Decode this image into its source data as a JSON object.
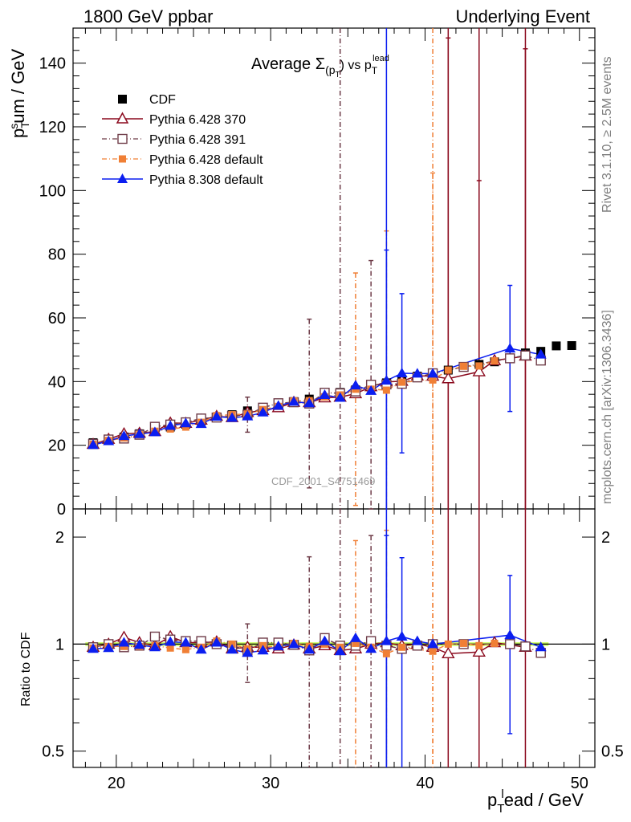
{
  "header": {
    "left": "1800 GeV ppbar",
    "right": "Underlying Event"
  },
  "side_texts": {
    "rivet": "Rivet 3.1.10, ≥ 2.5M events",
    "mcplots": "mcplots.cern.ch [arXiv:1306.3436]"
  },
  "watermark": "CDF_2001_S4751469",
  "colors": {
    "cdf": "#000000",
    "p370": "#8b0a1e",
    "p391": "#6e3c48",
    "p6def": "#f07f35",
    "p8def": "#0b1ef0",
    "band": "#ccff66"
  },
  "chart_data": [
    {
      "type": "scatter",
      "title": "Average Σ(p_T) vs p_T^lead",
      "title_main": "Average Σ",
      "title_sub": "(p",
      "title_subsub": "T",
      "title_mid": ") vs p",
      "title_sub2": "T",
      "title_sup": "lead",
      "ylabel": "p_T^sum / GeV",
      "ylabel_main": "p",
      "ylabel_sub": "T",
      "ylabel_sup": "s",
      "ylabel_rest": "um / GeV",
      "xlim": [
        17.2,
        51
      ],
      "ylim": [
        0,
        151
      ],
      "yticks": [
        "0",
        "20",
        "40",
        "60",
        "80",
        "100",
        "120",
        "140"
      ],
      "legend_position": "top-left",
      "series": [
        {
          "name": "CDF",
          "marker": "square",
          "x": [
            18.5,
            19.5,
            20.5,
            21.5,
            22.5,
            23.5,
            24.5,
            25.5,
            26.5,
            27.5,
            28.5,
            29.5,
            30.5,
            31.5,
            32.5,
            33.5,
            34.5,
            35.5,
            36.5,
            37.5,
            38.5,
            39.5,
            40.5,
            41.5,
            42.5,
            43.5,
            44.5,
            45.5,
            46.5,
            47.5,
            48.5,
            49.5
          ],
          "y": [
            20.8,
            21.9,
            22.6,
            23.6,
            24.6,
            25.7,
            26.6,
            27.7,
            28.7,
            29.6,
            30.8,
            31.5,
            32.9,
            33.7,
            34.5,
            35.2,
            36.6,
            37.4,
            38.3,
            39.6,
            40.6,
            41.7,
            42.4,
            43.6,
            44.6,
            45.4,
            46.2,
            47.4,
            49.0,
            49.5,
            51.2,
            51.3
          ]
        },
        {
          "name": "Pythia 6.428 370",
          "marker": "open-triangle",
          "x": [
            18.5,
            19.5,
            20.5,
            21.5,
            22.5,
            23.5,
            24.5,
            25.5,
            26.5,
            27.5,
            28.5,
            29.5,
            30.5,
            31.5,
            32.5,
            33.5,
            34.5,
            35.5,
            36.5,
            37.5,
            38.5,
            39.5,
            40.5,
            41.5,
            43.5,
            44.5,
            46.5
          ],
          "y": [
            20.3,
            21.9,
            23.6,
            23.8,
            24.3,
            27.0,
            26.9,
            27.9,
            29.1,
            28.7,
            30.3,
            30.9,
            31.8,
            33.5,
            33.4,
            34.9,
            35.1,
            36.2,
            38.4,
            39.9,
            40.1,
            41.8,
            41.7,
            40.9,
            43.1,
            46.6,
            48.0
          ],
          "err": [
            0,
            0,
            0,
            0,
            0,
            0,
            0,
            0,
            0,
            0,
            0,
            0,
            0,
            0,
            0,
            0,
            0,
            0,
            0,
            0,
            0,
            0,
            0,
            107.0,
            60.0,
            0,
            96.5
          ]
        },
        {
          "name": "Pythia 6.428 391",
          "marker": "open-square",
          "x": [
            18.5,
            19.5,
            20.5,
            21.5,
            22.5,
            23.5,
            24.5,
            25.5,
            26.5,
            27.5,
            28.5,
            29.5,
            30.5,
            31.5,
            32.5,
            33.5,
            34.5,
            35.5,
            36.5,
            37.5,
            38.5,
            39.5,
            40.5,
            42.5,
            45.5,
            46.5,
            47.5
          ],
          "y": [
            20.4,
            21.8,
            22.1,
            23.3,
            25.8,
            26.5,
            27.2,
            28.4,
            28.7,
            29.2,
            29.6,
            31.8,
            33.2,
            33.5,
            33.1,
            36.5,
            36.3,
            36.9,
            39.0,
            39.1,
            39.3,
            41.3,
            42.6,
            44.6,
            47.3,
            48.2,
            46.6
          ],
          "err": [
            0,
            0,
            0,
            0,
            0,
            0,
            0,
            0,
            0,
            0,
            5.5,
            0,
            0,
            0,
            26.5,
            0,
            0,
            0,
            39.0,
            0,
            0,
            0,
            0,
            0,
            0,
            0,
            0
          ]
        },
        {
          "name": "Pythia 6.428 default",
          "marker": "filled-square",
          "x": [
            18.5,
            19.5,
            20.5,
            21.5,
            22.5,
            23.5,
            24.5,
            25.5,
            26.5,
            27.5,
            28.5,
            29.5,
            30.5,
            31.5,
            32.5,
            33.5,
            34.5,
            35.5,
            36.5,
            37.5,
            38.5,
            40.5,
            41.5,
            42.5,
            43.5,
            44.5
          ],
          "y": [
            20.3,
            21.5,
            22.3,
            23.3,
            24.4,
            25.1,
            25.7,
            27.2,
            29.3,
            29.6,
            29.8,
            31.2,
            32.2,
            33.9,
            34.0,
            35.2,
            35.8,
            37.6,
            37.6,
            37.3,
            39.8,
            40.5,
            43.6,
            44.8,
            44.9,
            46.5
          ],
          "err": [
            0,
            0,
            0,
            0,
            0,
            0,
            0,
            0,
            0,
            0,
            0,
            0,
            0,
            0,
            0,
            0,
            0,
            36.5,
            0,
            50.0,
            0,
            65.0,
            0,
            0,
            0,
            0
          ]
        },
        {
          "name": "Pythia 8.308 default",
          "marker": "filled-triangle",
          "x": [
            18.5,
            19.5,
            20.5,
            21.5,
            22.5,
            23.5,
            24.5,
            25.5,
            26.5,
            27.5,
            28.5,
            29.5,
            30.5,
            31.5,
            32.5,
            33.5,
            34.5,
            35.5,
            36.5,
            37.5,
            38.5,
            39.5,
            40.5,
            45.5,
            47.5
          ],
          "y": [
            20.1,
            21.3,
            22.9,
            23.5,
            24.1,
            26.1,
            26.9,
            26.7,
            29.0,
            28.6,
            29.1,
            30.3,
            32.4,
            33.7,
            33.2,
            35.8,
            34.9,
            38.8,
            37.1,
            40.3,
            42.6,
            42.5,
            42.5,
            50.4,
            48.5
          ],
          "err": [
            0,
            0,
            0,
            0,
            0,
            0,
            0,
            0,
            0,
            0,
            0,
            0,
            0,
            0,
            0,
            0,
            0,
            0,
            0,
            41.0,
            25.0,
            0,
            0,
            19.8,
            0
          ]
        }
      ]
    },
    {
      "type": "scatter",
      "ylabel": "Ratio to CDF",
      "xlabel": "p_T^lead / GeV",
      "xlabel_main": "p",
      "xlabel_sub": "T",
      "xlabel_sup": "l",
      "xlabel_rest": "ead / GeV",
      "xlim": [
        17.2,
        51
      ],
      "ylim": [
        0.45,
        2.4
      ],
      "log_y": true,
      "xticks": [
        "20",
        "30",
        "40",
        "50"
      ],
      "yticks": [
        "0.5",
        "1",
        "2"
      ],
      "series": [
        {
          "name": "Pythia 6.428 370",
          "x": [
            18.5,
            19.5,
            20.5,
            21.5,
            22.5,
            23.5,
            24.5,
            25.5,
            26.5,
            27.5,
            28.5,
            29.5,
            30.5,
            31.5,
            32.5,
            33.5,
            34.5,
            35.5,
            36.5,
            37.5,
            38.5,
            39.5,
            40.5,
            41.5,
            43.5,
            44.5,
            46.5
          ],
          "y": [
            0.98,
            1.0,
            1.045,
            1.01,
            0.99,
            1.05,
            1.01,
            1.01,
            1.015,
            0.97,
            0.98,
            0.98,
            0.97,
            0.995,
            0.97,
            0.99,
            0.96,
            0.97,
            1.0,
            1.01,
            0.99,
            1.0,
            0.98,
            0.94,
            0.95,
            1.01,
            0.98
          ]
        },
        {
          "name": "Pythia 6.428 391",
          "x": [
            18.5,
            19.5,
            20.5,
            21.5,
            22.5,
            23.5,
            24.5,
            25.5,
            26.5,
            27.5,
            28.5,
            29.5,
            30.5,
            31.5,
            32.5,
            33.5,
            34.5,
            35.5,
            36.5,
            37.5,
            38.5,
            39.5,
            40.5,
            42.5,
            45.5,
            46.5,
            47.5
          ],
          "y": [
            0.98,
            1.0,
            0.98,
            0.99,
            1.05,
            1.03,
            1.02,
            1.02,
            1.0,
            0.99,
            0.96,
            1.01,
            1.01,
            0.995,
            0.96,
            1.04,
            0.99,
            0.99,
            1.02,
            0.99,
            0.97,
            0.99,
            1.0,
            1.0,
            1.0,
            0.985,
            0.945
          ],
          "err": [
            0,
            0,
            0,
            0,
            0,
            0,
            0,
            0,
            0,
            0,
            0.18,
            0,
            0,
            0,
            0.8,
            0,
            0,
            0,
            1.0,
            0,
            0,
            0,
            0,
            0,
            0,
            0,
            0
          ]
        },
        {
          "name": "Pythia 6.428 default",
          "x": [
            18.5,
            19.5,
            20.5,
            21.5,
            22.5,
            23.5,
            24.5,
            25.5,
            26.5,
            27.5,
            28.5,
            29.5,
            30.5,
            31.5,
            32.5,
            33.5,
            34.5,
            35.5,
            36.5,
            37.5,
            38.5,
            40.5,
            41.5,
            42.5,
            43.5,
            44.5
          ],
          "y": [
            0.975,
            0.985,
            0.985,
            0.985,
            0.99,
            0.975,
            0.965,
            0.98,
            1.02,
            1.0,
            0.97,
            0.99,
            0.98,
            1.005,
            0.985,
            1.0,
            0.98,
            1.005,
            0.98,
            0.94,
            0.98,
            0.955,
            1.0,
            1.005,
            0.99,
            1.005
          ],
          "err": [
            0,
            0,
            0,
            0,
            0,
            0,
            0,
            0,
            0,
            0,
            0,
            0,
            0,
            0,
            0,
            0,
            0,
            0.95,
            0,
            1.15,
            0,
            2.0,
            0,
            0,
            0,
            0
          ]
        },
        {
          "name": "Pythia 8.308 default",
          "x": [
            18.5,
            19.5,
            20.5,
            21.5,
            22.5,
            23.5,
            24.5,
            25.5,
            26.5,
            27.5,
            28.5,
            29.5,
            30.5,
            31.5,
            32.5,
            33.5,
            34.5,
            35.5,
            36.5,
            37.5,
            38.5,
            39.5,
            40.5,
            45.5,
            47.5
          ],
          "y": [
            0.97,
            0.975,
            1.01,
            0.995,
            0.98,
            1.015,
            1.01,
            0.965,
            1.01,
            0.965,
            0.945,
            0.96,
            0.985,
            1.0,
            0.965,
            1.02,
            0.955,
            1.04,
            0.97,
            1.02,
            1.05,
            1.02,
            1.0,
            1.06,
            0.98
          ],
          "err": [
            0,
            0,
            0,
            0,
            0,
            0,
            0,
            0,
            0,
            0,
            0,
            0,
            0,
            0,
            0,
            0,
            0,
            0,
            0,
            1.0,
            0.7,
            0,
            0,
            0.5,
            0
          ]
        }
      ]
    }
  ]
}
